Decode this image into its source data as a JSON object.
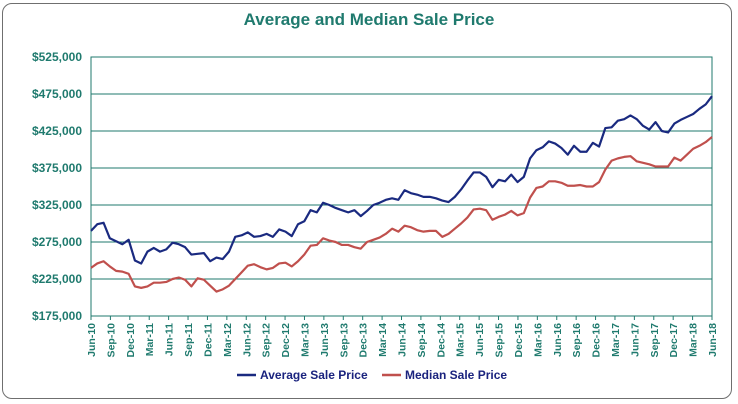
{
  "chart_data": {
    "type": "line",
    "title": "Average and Median Sale Price",
    "xlabel": "",
    "ylabel": "",
    "ylim": [
      175000,
      525000
    ],
    "yticks": [
      175000,
      225000,
      275000,
      325000,
      375000,
      425000,
      475000,
      525000
    ],
    "ytick_labels": [
      "$175,000",
      "$225,000",
      "$275,000",
      "$325,000",
      "$375,000",
      "$425,000",
      "$475,000",
      "$525,000"
    ],
    "xtick_labels": [
      "Jun-10",
      "Sep-10",
      "Dec-10",
      "Mar-11",
      "Jun-11",
      "Sep-11",
      "Dec-11",
      "Mar-12",
      "Jun-12",
      "Sep-12",
      "Dec-12",
      "Mar-13",
      "Jun-13",
      "Sep-13",
      "Dec-13",
      "Mar-14",
      "Jun-14",
      "Sep-14",
      "Dec-14",
      "Mar-15",
      "Jun-15",
      "Sep-15",
      "Dec-15",
      "Mar-16",
      "Jun-16",
      "Sep-16",
      "Dec-16",
      "Mar-17",
      "Jun-17",
      "Sep-17",
      "Dec-17",
      "Mar-18",
      "Jun-18"
    ],
    "grid": true,
    "legend_position": "bottom",
    "series": [
      {
        "name": "Average Sale Price",
        "color": "#1a2a80",
        "values": [
          290000,
          299000,
          301000,
          280000,
          276000,
          272000,
          278000,
          250000,
          246000,
          262000,
          267000,
          262000,
          265000,
          274000,
          272000,
          268000,
          258000,
          259000,
          260000,
          249000,
          254000,
          252000,
          262000,
          282000,
          284000,
          288000,
          282000,
          283000,
          286000,
          282000,
          292000,
          289000,
          283000,
          299000,
          303000,
          318000,
          315000,
          328000,
          325000,
          321000,
          318000,
          315000,
          318000,
          310000,
          317000,
          325000,
          328000,
          332000,
          334000,
          332000,
          345000,
          341000,
          339000,
          336000,
          336000,
          334000,
          331000,
          329000,
          336000,
          346000,
          358000,
          369000,
          369000,
          363000,
          349000,
          359000,
          357000,
          366000,
          356000,
          363000,
          388000,
          399000,
          403000,
          411000,
          408000,
          402000,
          393000,
          405000,
          397000,
          397000,
          409000,
          404000,
          429000,
          430000,
          439000,
          441000,
          446000,
          441000,
          432000,
          427000,
          437000,
          425000,
          423000,
          435000,
          440000,
          444000,
          448000,
          455000,
          461000,
          472000
        ]
      },
      {
        "name": "Median Sale Price",
        "color": "#c0504d",
        "values": [
          240000,
          246000,
          249000,
          242000,
          236000,
          235000,
          232000,
          215000,
          213000,
          215000,
          220000,
          220000,
          221000,
          225000,
          227000,
          224000,
          215000,
          226000,
          224000,
          216000,
          208000,
          211000,
          216000,
          225000,
          234000,
          243000,
          245000,
          241000,
          238000,
          240000,
          246000,
          247000,
          242000,
          249000,
          258000,
          270000,
          271000,
          280000,
          277000,
          275000,
          271000,
          271000,
          268000,
          266000,
          275000,
          278000,
          281000,
          286000,
          293000,
          289000,
          297000,
          295000,
          291000,
          289000,
          290000,
          290000,
          282000,
          286000,
          293000,
          300000,
          308000,
          319000,
          320000,
          318000,
          305000,
          309000,
          312000,
          317000,
          311000,
          314000,
          335000,
          348000,
          350000,
          357000,
          357000,
          355000,
          351000,
          351000,
          352000,
          350000,
          350000,
          356000,
          373000,
          385000,
          388000,
          390000,
          391000,
          384000,
          382000,
          380000,
          377000,
          377000,
          377000,
          389000,
          385000,
          393000,
          401000,
          405000,
          410000,
          417000
        ]
      }
    ]
  }
}
